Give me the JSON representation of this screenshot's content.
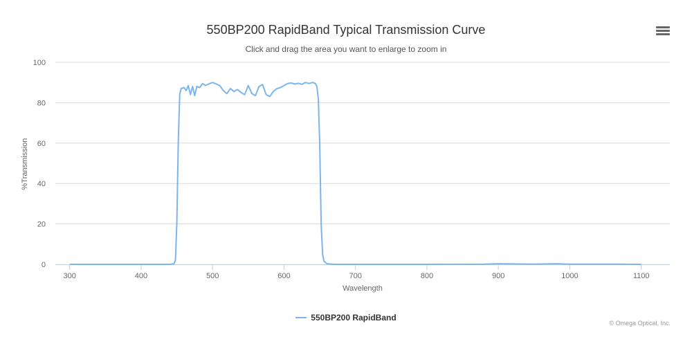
{
  "chart_data": {
    "type": "line",
    "title": "550BP200 RapidBand Typical Transmission Curve",
    "subtitle": "Click and drag the area you want to enlarge to zoom in",
    "xlabel": "Wavelength",
    "ylabel": "%Transmission",
    "xlim": [
      280,
      1140
    ],
    "ylim": [
      0,
      100
    ],
    "xticks": [
      300,
      400,
      500,
      600,
      700,
      800,
      900,
      1000,
      1100
    ],
    "yticks": [
      0,
      20,
      40,
      60,
      80,
      100
    ],
    "grid": "horizontal",
    "legend_position": "bottom-center",
    "series": [
      {
        "name": "550BP200 RapidBand",
        "color": "#7cb5ec",
        "x": [
          300,
          400,
          440,
          446,
          448,
          450,
          452,
          454,
          456,
          460,
          463,
          466,
          469,
          472,
          475,
          478,
          482,
          486,
          490,
          495,
          500,
          505,
          510,
          515,
          520,
          525,
          530,
          535,
          540,
          545,
          550,
          555,
          560,
          565,
          570,
          575,
          580,
          585,
          590,
          595,
          600,
          605,
          610,
          615,
          620,
          625,
          630,
          635,
          640,
          644,
          646,
          648,
          650,
          652,
          654,
          656,
          660,
          670,
          700,
          800,
          880,
          900,
          950,
          980,
          1000,
          1050,
          1100
        ],
        "y": [
          0,
          0,
          0,
          0.3,
          2,
          20,
          60,
          84,
          87,
          87.5,
          86,
          88.5,
          84,
          88,
          83.5,
          88,
          87.5,
          89.5,
          88.5,
          89.3,
          90,
          89.3,
          88.5,
          86,
          84.5,
          87,
          85.5,
          86.5,
          85,
          84,
          88.5,
          84.5,
          83.5,
          88,
          89,
          84,
          83,
          85.5,
          87,
          87.5,
          88.5,
          89.5,
          89.8,
          89.2,
          89.6,
          89.1,
          90,
          89.5,
          90,
          89.5,
          88,
          82,
          60,
          20,
          5,
          1.5,
          0.3,
          0,
          0,
          0,
          0.1,
          0.3,
          0.1,
          0.3,
          0.1,
          0.1,
          0
        ]
      }
    ]
  },
  "toolbar": {
    "menu_icon": "hamburger-icon"
  },
  "credits": "© Omega Optical, Inc."
}
